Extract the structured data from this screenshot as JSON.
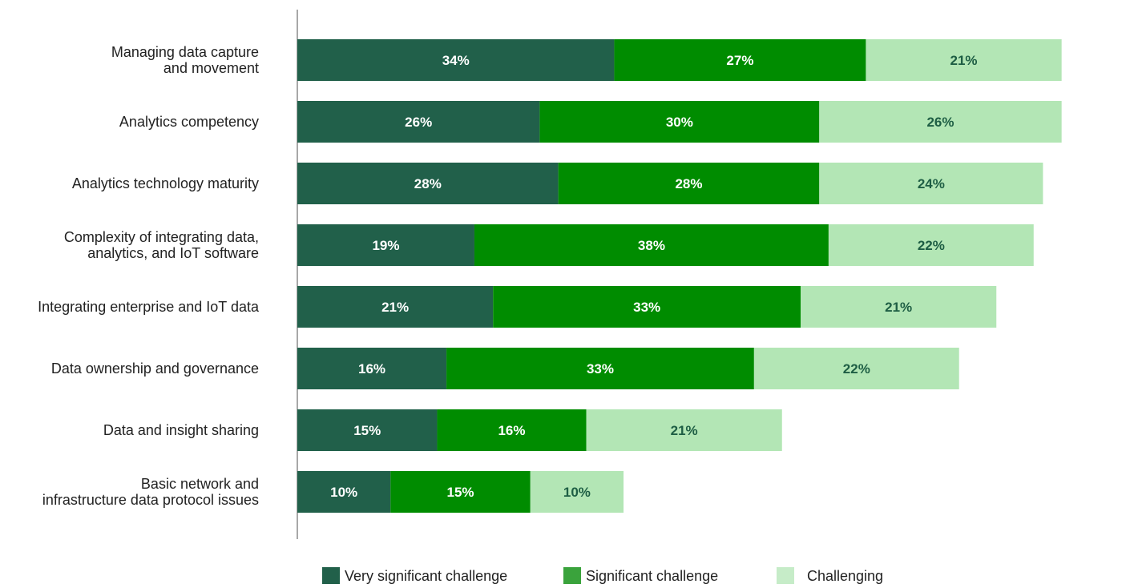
{
  "chart_data": {
    "type": "bar",
    "orientation": "horizontal",
    "stacked": true,
    "categories": [
      "Managing data capture and movement",
      "Analytics competency",
      "Analytics technology maturity",
      "Complexity of integrating data, analytics, and IoT software",
      "Integrating enterprise and IoT data",
      "Data ownership and governance",
      "Data and insight sharing",
      "Basic network and infrastructure data protocol issues"
    ],
    "category_lines": [
      [
        "Managing data capture",
        "and movement"
      ],
      [
        "Analytics competency"
      ],
      [
        "Analytics technology maturity"
      ],
      [
        "Complexity of integrating data,",
        "analytics, and IoT software"
      ],
      [
        "Integrating enterprise and IoT data"
      ],
      [
        "Data ownership and governance"
      ],
      [
        "Data and insight sharing"
      ],
      [
        "Basic network and",
        "infrastructure data protocol issues"
      ]
    ],
    "series": [
      {
        "name": "Very significant challenge",
        "values": [
          34,
          26,
          28,
          19,
          21,
          16,
          15,
          10
        ],
        "color": "#21604a",
        "label_color": "#ffffff"
      },
      {
        "name": "Significant challenge",
        "values": [
          27,
          30,
          28,
          38,
          33,
          33,
          16,
          15
        ],
        "color": "#008c00",
        "label_color": "#ffffff"
      },
      {
        "name": "Challenging",
        "values": [
          21,
          26,
          24,
          22,
          21,
          22,
          21,
          10
        ],
        "color": "#b3e6b5",
        "label_color": "#1e5e44"
      }
    ],
    "data_label_suffix": "%",
    "legend_position": "bottom",
    "legend_swatch_colors": [
      "#21604a",
      "#3aa33c",
      "#c6ecc8"
    ],
    "grid": false
  }
}
